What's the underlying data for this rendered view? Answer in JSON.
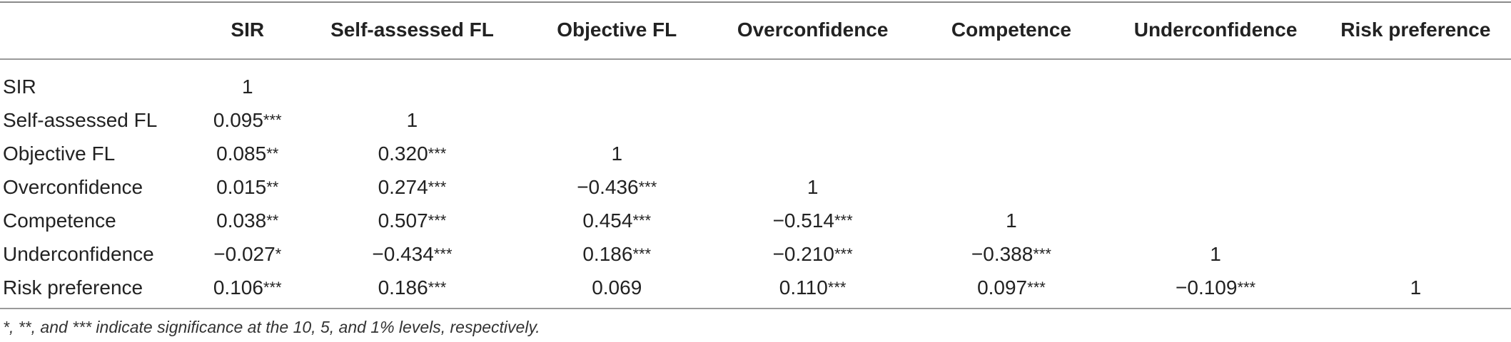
{
  "table": {
    "columns": [
      "",
      "SIR",
      "Self-assessed FL",
      "Objective FL",
      "Overconfidence",
      "Competence",
      "Underconfidence",
      "Risk preference"
    ],
    "rows": [
      {
        "label": "SIR",
        "cells": [
          {
            "v": "1",
            "s": ""
          },
          {
            "v": "",
            "s": ""
          },
          {
            "v": "",
            "s": ""
          },
          {
            "v": "",
            "s": ""
          },
          {
            "v": "",
            "s": ""
          },
          {
            "v": "",
            "s": ""
          },
          {
            "v": "",
            "s": ""
          }
        ]
      },
      {
        "label": "Self-assessed FL",
        "cells": [
          {
            "v": "0.095",
            "s": "***"
          },
          {
            "v": "1",
            "s": ""
          },
          {
            "v": "",
            "s": ""
          },
          {
            "v": "",
            "s": ""
          },
          {
            "v": "",
            "s": ""
          },
          {
            "v": "",
            "s": ""
          },
          {
            "v": "",
            "s": ""
          }
        ]
      },
      {
        "label": "Objective FL",
        "cells": [
          {
            "v": "0.085",
            "s": "**"
          },
          {
            "v": "0.320",
            "s": "***"
          },
          {
            "v": "1",
            "s": ""
          },
          {
            "v": "",
            "s": ""
          },
          {
            "v": "",
            "s": ""
          },
          {
            "v": "",
            "s": ""
          },
          {
            "v": "",
            "s": ""
          }
        ]
      },
      {
        "label": "Overconfidence",
        "cells": [
          {
            "v": "0.015",
            "s": "**"
          },
          {
            "v": "0.274",
            "s": "***"
          },
          {
            "v": "−0.436",
            "s": "***"
          },
          {
            "v": "1",
            "s": ""
          },
          {
            "v": "",
            "s": ""
          },
          {
            "v": "",
            "s": ""
          },
          {
            "v": "",
            "s": ""
          }
        ]
      },
      {
        "label": "Competence",
        "cells": [
          {
            "v": "0.038",
            "s": "**"
          },
          {
            "v": "0.507",
            "s": "***"
          },
          {
            "v": "0.454",
            "s": "***"
          },
          {
            "v": "−0.514",
            "s": "***"
          },
          {
            "v": "1",
            "s": ""
          },
          {
            "v": "",
            "s": ""
          },
          {
            "v": "",
            "s": ""
          }
        ]
      },
      {
        "label": "Underconfidence",
        "cells": [
          {
            "v": "−0.027",
            "s": "*"
          },
          {
            "v": "−0.434",
            "s": "***"
          },
          {
            "v": "0.186",
            "s": "***"
          },
          {
            "v": "−0.210",
            "s": "***"
          },
          {
            "v": "−0.388",
            "s": "***"
          },
          {
            "v": "1",
            "s": ""
          },
          {
            "v": "",
            "s": ""
          }
        ]
      },
      {
        "label": "Risk preference",
        "cells": [
          {
            "v": "0.106",
            "s": "***"
          },
          {
            "v": "0.186",
            "s": "***"
          },
          {
            "v": "0.069",
            "s": ""
          },
          {
            "v": "0.110",
            "s": "***"
          },
          {
            "v": "0.097",
            "s": "***"
          },
          {
            "v": "−0.109",
            "s": "***"
          },
          {
            "v": "1",
            "s": ""
          }
        ]
      }
    ]
  },
  "footnote": "*, **, and *** indicate significance at the 10, 5, and 1% levels, respectively."
}
